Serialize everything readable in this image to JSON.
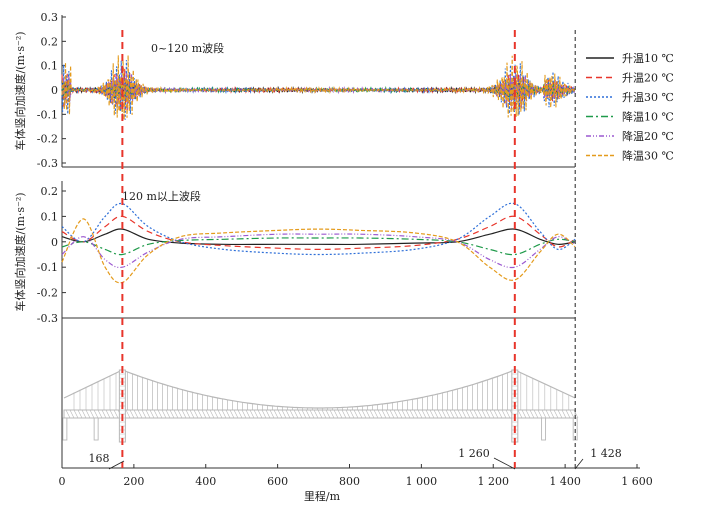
{
  "chart_data": [
    {
      "type": "line",
      "panel": "top",
      "annotation": "0~120 m波段",
      "ylabel": "车体竖向加速度/(m·s⁻²)",
      "ylim": [
        -0.3,
        0.3
      ],
      "yticks": [
        "0.3",
        "0.2",
        "0.1",
        "0",
        "-0.1",
        "-0.2",
        "-0.3"
      ],
      "xlim": [
        0,
        1600
      ],
      "note": "high-frequency oscillation concentrated near 168 m and 1260 m, near zero along span",
      "series": [
        {
          "name": "升温10 ℃",
          "peak": 0.04
        },
        {
          "name": "升温20 ℃",
          "peak": 0.09
        },
        {
          "name": "升温30 ℃",
          "peak": 0.14
        },
        {
          "name": "降温10 ℃",
          "peak": 0.04
        },
        {
          "name": "降温20 ℃",
          "peak": 0.09
        },
        {
          "name": "降温30 ℃",
          "peak": 0.16
        }
      ]
    },
    {
      "type": "line",
      "panel": "middle",
      "annotation": "120 m以上波段",
      "ylabel": "车体竖向加速度/(m·s⁻²)",
      "ylim": [
        -0.3,
        0.2
      ],
      "yticks": [
        "0.2",
        "0.1",
        "0",
        "-0.1",
        "-0.2",
        "-0.3"
      ],
      "xlim": [
        0,
        1600
      ],
      "x_samples": [
        0,
        60,
        120,
        168,
        240,
        330,
        450,
        600,
        714,
        830,
        980,
        1100,
        1190,
        1260,
        1330,
        1380,
        1428
      ],
      "series": [
        {
          "name": "升温10 ℃",
          "y": [
            0.02,
            0.0,
            0.03,
            0.05,
            0.01,
            -0.005,
            -0.01,
            -0.01,
            -0.01,
            -0.01,
            -0.005,
            0.0,
            0.03,
            0.05,
            0.01,
            -0.01,
            0.0
          ]
        },
        {
          "name": "升温20 ℃",
          "y": [
            0.04,
            0.0,
            0.06,
            0.1,
            0.04,
            0.0,
            -0.015,
            -0.025,
            -0.03,
            -0.025,
            -0.015,
            0.01,
            0.06,
            0.1,
            0.03,
            -0.02,
            0.01
          ]
        },
        {
          "name": "升温30 ℃",
          "y": [
            0.06,
            0.0,
            0.1,
            0.15,
            0.06,
            0.0,
            -0.03,
            -0.045,
            -0.05,
            -0.045,
            -0.03,
            0.01,
            0.1,
            0.15,
            0.04,
            -0.03,
            0.01
          ]
        },
        {
          "name": "降温10 ℃",
          "y": [
            -0.02,
            0.0,
            -0.03,
            -0.05,
            -0.01,
            0.005,
            0.01,
            0.015,
            0.015,
            0.015,
            0.01,
            0.0,
            -0.03,
            -0.05,
            -0.01,
            0.01,
            0.0
          ]
        },
        {
          "name": "降温20 ℃",
          "y": [
            -0.05,
            0.02,
            -0.07,
            -0.1,
            -0.04,
            0.01,
            0.02,
            0.03,
            0.03,
            0.03,
            0.02,
            0.0,
            -0.07,
            -0.1,
            -0.03,
            0.02,
            -0.01
          ]
        },
        {
          "name": "降温30 ℃",
          "y": [
            -0.08,
            0.09,
            -0.1,
            -0.16,
            -0.05,
            0.02,
            0.035,
            0.045,
            0.05,
            0.045,
            0.035,
            0.0,
            -0.1,
            -0.15,
            -0.04,
            0.03,
            -0.02
          ]
        }
      ]
    }
  ],
  "xaxis": {
    "label": "里程/m",
    "ticks": [
      0,
      200,
      400,
      600,
      800,
      1000,
      1200,
      1400,
      1600
    ],
    "tick_labels": [
      "0",
      "200",
      "400",
      "600",
      "800",
      "1 000",
      "1 200",
      "1 400",
      "1 600"
    ]
  },
  "markers": [
    {
      "x": 168,
      "label": "168"
    },
    {
      "x": 1260,
      "label": "1 260"
    },
    {
      "x": 1428,
      "label": "1 428"
    }
  ],
  "legend": [
    "升温10 ℃",
    "升温20 ℃",
    "升温30 ℃",
    "降温10 ℃",
    "降温20 ℃",
    "降温30 ℃"
  ],
  "colors": {
    "升温10 ℃": "#222222",
    "升温20 ℃": "#e8352b",
    "升温30 ℃": "#2e6fd8",
    "降温10 ℃": "#1f9a4a",
    "降温20 ℃": "#9b59d0",
    "降温30 ℃": "#e49b1c",
    "marker_line": "#e8352b",
    "bridge": "#b8b8b8"
  }
}
